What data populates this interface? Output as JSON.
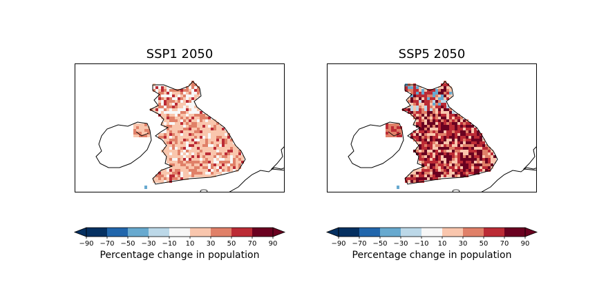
{
  "panels": [
    {
      "title": "SSP1 2050",
      "scenario": "SSP1",
      "intensity": 0.35
    },
    {
      "title": "SSP5 2050",
      "scenario": "SSP5",
      "intensity": 0.85
    }
  ],
  "colorbar": {
    "label": "Percentage change in population",
    "ticks": [
      "−90",
      "−70",
      "−50",
      "−30",
      "−10",
      "10",
      "30",
      "50",
      "70",
      "90"
    ],
    "bins": [
      {
        "from": -90,
        "to": -70,
        "color": "#053061"
      },
      {
        "from": -70,
        "to": -50,
        "color": "#2166ac"
      },
      {
        "from": -50,
        "to": -30,
        "color": "#67a9cf"
      },
      {
        "from": -30,
        "to": -10,
        "color": "#bcd8e8"
      },
      {
        "from": -10,
        "to": 10,
        "color": "#f7f7f7"
      },
      {
        "from": 10,
        "to": 30,
        "color": "#f9c6ad"
      },
      {
        "from": 30,
        "to": 50,
        "color": "#e08068"
      },
      {
        "from": 50,
        "to": 70,
        "color": "#bb2b35"
      },
      {
        "from": 70,
        "to": 90,
        "color": "#6a0120"
      }
    ],
    "extend": "both"
  }
}
